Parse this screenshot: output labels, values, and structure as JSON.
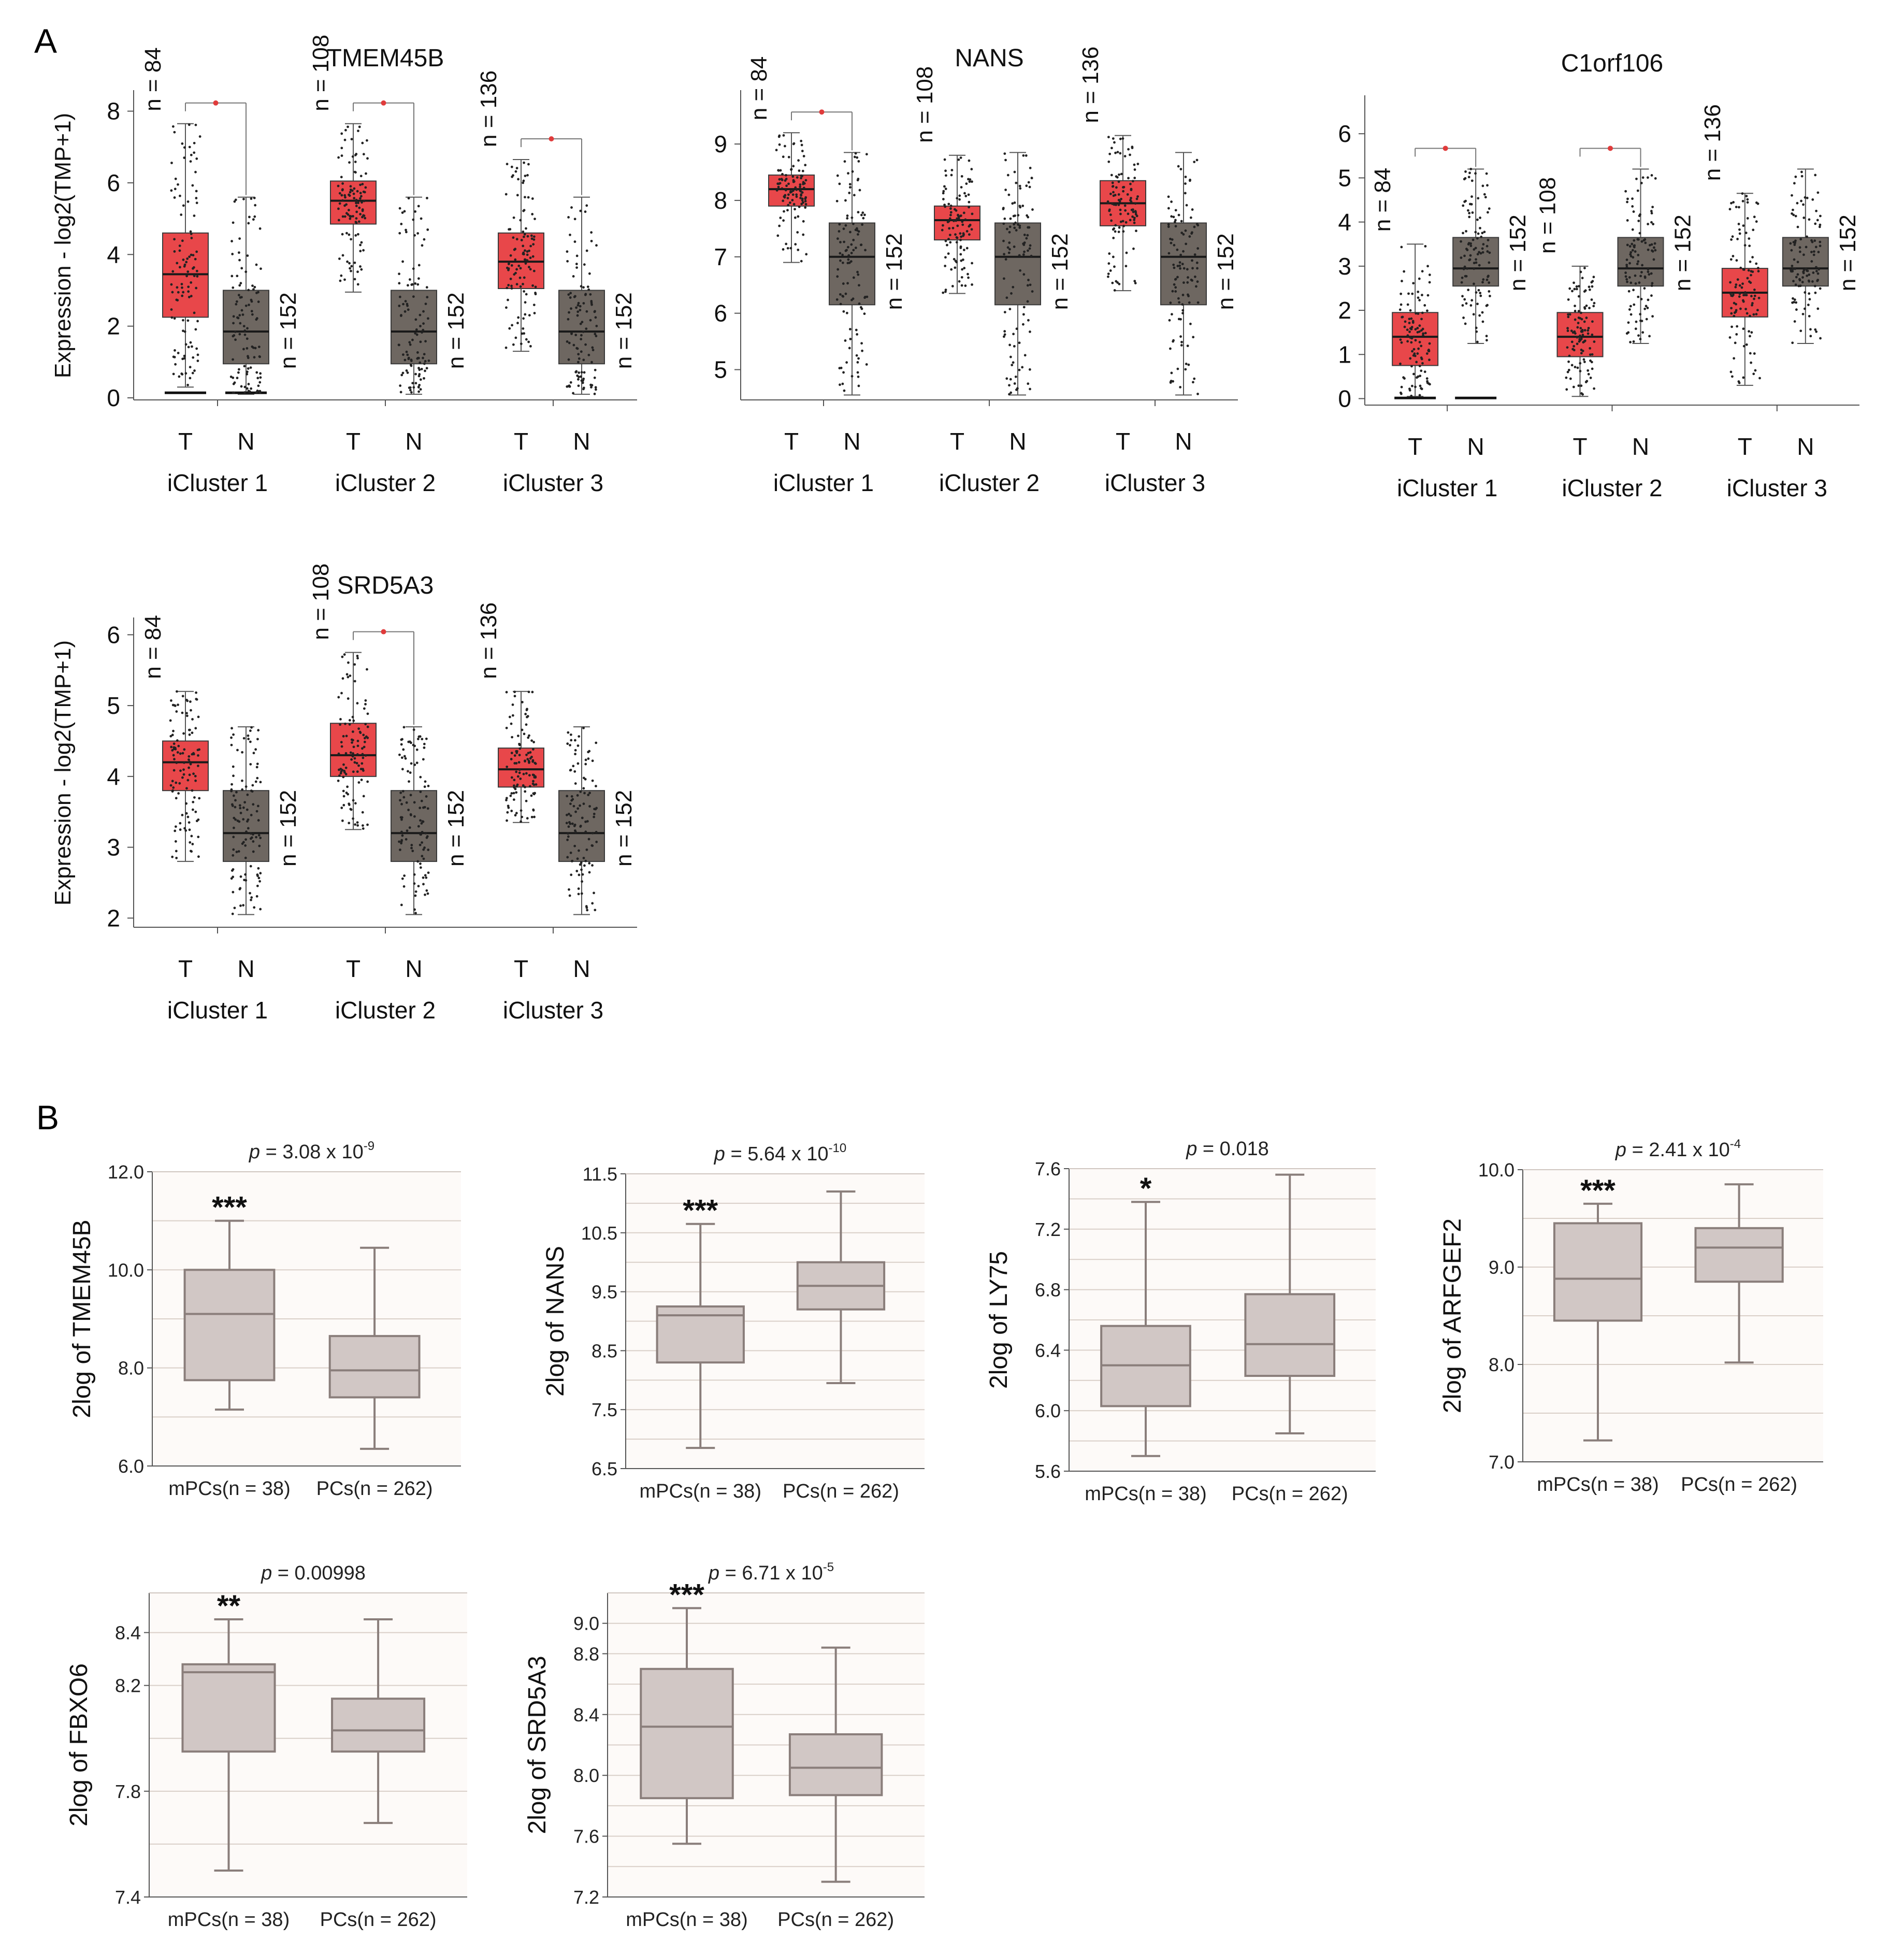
{
  "figure": {
    "panel_a_label": "A",
    "panel_b_label": "B",
    "colors": {
      "tumor": "#e8474a",
      "normal": "#6e6761",
      "box_b": "#d1c7c5",
      "box_b_stroke": "#8a7e7b",
      "sig_line": "#e03b3b",
      "grid": "#d9cfc8"
    }
  },
  "chart_data": [
    {
      "id": "a-tmem45b",
      "panel": "A",
      "type": "box",
      "title": "TMEM45B",
      "ylabel": "Expression - log2(TMP+1)",
      "ylim": [
        0,
        8.5
      ],
      "yticks": [
        0,
        2,
        4,
        6,
        8
      ],
      "groups": [
        {
          "cluster": "iCluster 1",
          "significant": true,
          "tumor": {
            "label": "T",
            "n_label": "n = 84",
            "min": 0.3,
            "q1": 2.25,
            "median": 3.45,
            "q3": 4.6,
            "max": 7.65,
            "floor": true
          },
          "normal": {
            "label": "N",
            "n_label": "n = 152",
            "min": 0.1,
            "q1": 0.95,
            "median": 1.85,
            "q3": 3.0,
            "max": 5.6,
            "floor": true
          }
        },
        {
          "cluster": "iCluster 2",
          "significant": true,
          "tumor": {
            "label": "T",
            "n_label": "n = 108",
            "min": 2.95,
            "q1": 4.85,
            "median": 5.5,
            "q3": 6.05,
            "max": 7.65
          },
          "normal": {
            "label": "N",
            "n_label": "n = 152",
            "min": 0.1,
            "q1": 0.95,
            "median": 1.85,
            "q3": 3.0,
            "max": 5.6
          }
        },
        {
          "cluster": "iCluster 3",
          "significant": true,
          "tumor": {
            "label": "T",
            "n_label": "n = 136",
            "min": 1.3,
            "q1": 3.05,
            "median": 3.8,
            "q3": 4.6,
            "max": 6.65
          },
          "normal": {
            "label": "N",
            "n_label": "n = 152",
            "min": 0.1,
            "q1": 0.95,
            "median": 1.85,
            "q3": 3.0,
            "max": 5.6
          }
        }
      ]
    },
    {
      "id": "a-nans",
      "panel": "A",
      "type": "box",
      "title": "NANS",
      "ylabel": "",
      "ylim": [
        4.5,
        9.9
      ],
      "yticks": [
        5,
        6,
        7,
        8,
        9
      ],
      "groups": [
        {
          "cluster": "iCluster 1",
          "significant": true,
          "tumor": {
            "label": "T",
            "n_label": "n = 84",
            "min": 6.9,
            "q1": 7.9,
            "median": 8.2,
            "q3": 8.45,
            "max": 9.2
          },
          "normal": {
            "label": "N",
            "n_label": "n = 152",
            "min": 4.55,
            "q1": 6.15,
            "median": 7.0,
            "q3": 7.6,
            "max": 8.85
          }
        },
        {
          "cluster": "iCluster 2",
          "significant": false,
          "tumor": {
            "label": "T",
            "n_label": "n = 108",
            "min": 6.35,
            "q1": 7.3,
            "median": 7.65,
            "q3": 7.9,
            "max": 8.8
          },
          "normal": {
            "label": "N",
            "n_label": "n = 152",
            "min": 4.55,
            "q1": 6.15,
            "median": 7.0,
            "q3": 7.6,
            "max": 8.85
          }
        },
        {
          "cluster": "iCluster 3",
          "significant": false,
          "tumor": {
            "label": "T",
            "n_label": "n = 136",
            "min": 6.4,
            "q1": 7.55,
            "median": 7.95,
            "q3": 8.35,
            "max": 9.15
          },
          "normal": {
            "label": "N",
            "n_label": "n = 152",
            "min": 4.55,
            "q1": 6.15,
            "median": 7.0,
            "q3": 7.6,
            "max": 8.85
          }
        }
      ]
    },
    {
      "id": "a-c1orf106",
      "panel": "A",
      "type": "box",
      "title": "C1orf106",
      "ylabel": "",
      "ylim": [
        -0.1,
        6.8
      ],
      "yticks": [
        0,
        1,
        2,
        3,
        4,
        5,
        6
      ],
      "groups": [
        {
          "cluster": "iCluster 1",
          "significant": true,
          "tumor": {
            "label": "T",
            "n_label": "n = 84",
            "min": 0.05,
            "q1": 0.75,
            "median": 1.4,
            "q3": 1.95,
            "max": 3.5,
            "floor": true
          },
          "normal": {
            "label": "N",
            "n_label": "n = 152",
            "min": 1.25,
            "q1": 2.55,
            "median": 2.95,
            "q3": 3.65,
            "max": 5.2,
            "floor": true
          }
        },
        {
          "cluster": "iCluster 2",
          "significant": true,
          "tumor": {
            "label": "T",
            "n_label": "n = 108",
            "min": 0.05,
            "q1": 0.95,
            "median": 1.4,
            "q3": 1.95,
            "max": 3.0
          },
          "normal": {
            "label": "N",
            "n_label": "n = 152",
            "min": 1.25,
            "q1": 2.55,
            "median": 2.95,
            "q3": 3.65,
            "max": 5.2
          }
        },
        {
          "cluster": "iCluster 3",
          "significant": false,
          "tumor": {
            "label": "T",
            "n_label": "n = 136",
            "min": 0.3,
            "q1": 1.85,
            "median": 2.4,
            "q3": 2.95,
            "max": 4.65
          },
          "normal": {
            "label": "N",
            "n_label": "n = 152",
            "min": 1.25,
            "q1": 2.55,
            "median": 2.95,
            "q3": 3.65,
            "max": 5.2
          }
        }
      ]
    },
    {
      "id": "a-srd5a3",
      "panel": "A",
      "type": "box",
      "title": "SRD5A3",
      "ylabel": "Expression - log2(TMP+1)",
      "ylim": [
        1.9,
        6.2
      ],
      "yticks": [
        2,
        3,
        4,
        5,
        6
      ],
      "groups": [
        {
          "cluster": "iCluster 1",
          "significant": false,
          "tumor": {
            "label": "T",
            "n_label": "n = 84",
            "min": 2.8,
            "q1": 3.8,
            "median": 4.2,
            "q3": 4.5,
            "max": 5.2
          },
          "normal": {
            "label": "N",
            "n_label": "n = 152",
            "min": 2.05,
            "q1": 2.8,
            "median": 3.2,
            "q3": 3.8,
            "max": 4.7
          }
        },
        {
          "cluster": "iCluster 2",
          "significant": true,
          "tumor": {
            "label": "T",
            "n_label": "n = 108",
            "min": 3.25,
            "q1": 4.0,
            "median": 4.3,
            "q3": 4.75,
            "max": 5.75
          },
          "normal": {
            "label": "N",
            "n_label": "n = 152",
            "min": 2.05,
            "q1": 2.8,
            "median": 3.2,
            "q3": 3.8,
            "max": 4.7
          }
        },
        {
          "cluster": "iCluster 3",
          "significant": false,
          "tumor": {
            "label": "T",
            "n_label": "n = 136",
            "min": 3.35,
            "q1": 3.85,
            "median": 4.1,
            "q3": 4.4,
            "max": 5.2
          },
          "normal": {
            "label": "N",
            "n_label": "n = 152",
            "min": 2.05,
            "q1": 2.8,
            "median": 3.2,
            "q3": 3.8,
            "max": 4.7
          }
        }
      ]
    },
    {
      "id": "b-tmem45b",
      "panel": "B",
      "type": "box",
      "ylabel": "2log of TMEM45B",
      "p_prefix": "p",
      "p_value": " = 3.08 x 10",
      "p_exp": "-9",
      "ylim": [
        6.0,
        12.0
      ],
      "yticks": [
        6.0,
        8.0,
        10.0,
        12.0
      ],
      "tick_labels": [
        "6.0",
        "8.0",
        "10.0",
        "12.0"
      ],
      "gridlines": [
        7.0,
        8.0,
        9.0,
        10.0,
        11.0
      ],
      "categories": [
        "mPCs(n = 38)",
        "PCs(n = 262)"
      ],
      "star": "***",
      "boxes": [
        {
          "min": 7.15,
          "q1": 7.75,
          "median": 9.1,
          "q3": 10.0,
          "max": 11.0
        },
        {
          "min": 6.35,
          "q1": 7.4,
          "median": 7.95,
          "q3": 8.65,
          "max": 10.45
        }
      ]
    },
    {
      "id": "b-nans",
      "panel": "B",
      "type": "box",
      "ylabel": "2log of NANS",
      "p_prefix": "p",
      "p_value": " = 5.64 x 10",
      "p_exp": "-10",
      "ylim": [
        6.5,
        11.5
      ],
      "yticks": [
        6.5,
        7.5,
        8.5,
        9.5,
        10.5,
        11.5
      ],
      "tick_labels": [
        "6.5",
        "7.5",
        "8.5",
        "9.5",
        "10.5",
        "11.5"
      ],
      "gridlines": [
        7.0,
        7.5,
        8.0,
        8.5,
        9.0,
        9.5,
        10.0,
        10.5,
        11.0
      ],
      "categories": [
        "mPCs(n = 38)",
        "PCs(n = 262)"
      ],
      "star": "***",
      "boxes": [
        {
          "min": 6.85,
          "q1": 8.3,
          "median": 9.1,
          "q3": 9.25,
          "max": 10.65
        },
        {
          "min": 7.95,
          "q1": 9.2,
          "median": 9.6,
          "q3": 10.0,
          "max": 11.2
        }
      ]
    },
    {
      "id": "b-ly75",
      "panel": "B",
      "type": "box",
      "ylabel": "2log of LY75",
      "p_prefix": "p",
      "p_value": " = 0.018",
      "p_exp": "",
      "ylim": [
        5.6,
        7.6
      ],
      "yticks": [
        5.6,
        6.0,
        6.4,
        6.8,
        7.2,
        7.6
      ],
      "tick_labels": [
        "5.6",
        "6.0",
        "6.4",
        "6.8",
        "7.2",
        "7.6"
      ],
      "gridlines": [
        5.8,
        6.0,
        6.2,
        6.4,
        6.6,
        6.8,
        7.0,
        7.2,
        7.4
      ],
      "categories": [
        "mPCs(n = 38)",
        "PCs(n = 262)"
      ],
      "star": "*",
      "boxes": [
        {
          "min": 5.7,
          "q1": 6.03,
          "median": 6.3,
          "q3": 6.56,
          "max": 7.38
        },
        {
          "min": 5.85,
          "q1": 6.23,
          "median": 6.44,
          "q3": 6.77,
          "max": 7.56
        }
      ]
    },
    {
      "id": "b-arfgef2",
      "panel": "B",
      "type": "box",
      "ylabel": "2log of ARFGEF2",
      "p_prefix": "p",
      "p_value": " = 2.41 x 10",
      "p_exp": "-4",
      "ylim": [
        7.0,
        10.0
      ],
      "yticks": [
        7.0,
        8.0,
        9.0,
        10.0
      ],
      "tick_labels": [
        "7.0",
        "8.0",
        "9.0",
        "10.0"
      ],
      "gridlines": [
        7.5,
        8.0,
        8.5,
        9.0,
        9.5
      ],
      "categories": [
        "mPCs(n = 38)",
        "PCs(n = 262)"
      ],
      "star": "***",
      "boxes": [
        {
          "min": 7.22,
          "q1": 8.45,
          "median": 8.88,
          "q3": 9.45,
          "max": 9.65
        },
        {
          "min": 8.02,
          "q1": 8.85,
          "median": 9.2,
          "q3": 9.4,
          "max": 9.85
        }
      ]
    },
    {
      "id": "b-fbxo6",
      "panel": "B",
      "type": "box",
      "ylabel": "2log of FBXO6",
      "p_prefix": "p",
      "p_value": " = 0.00998",
      "p_exp": "",
      "ylim": [
        7.4,
        8.55
      ],
      "yticks": [
        7.4,
        7.8,
        8.2,
        8.4
      ],
      "tick_labels": [
        "7.4",
        "7.8",
        "8.2",
        "8.4"
      ],
      "gridlines": [
        7.6,
        7.8,
        8.0,
        8.2,
        8.4
      ],
      "categories": [
        "mPCs(n = 38)",
        "PCs(n = 262)"
      ],
      "star": "**",
      "boxes": [
        {
          "min": 7.5,
          "q1": 7.95,
          "median": 8.25,
          "q3": 8.28,
          "max": 8.45
        },
        {
          "min": 7.68,
          "q1": 7.95,
          "median": 8.03,
          "q3": 8.15,
          "max": 8.45
        }
      ]
    },
    {
      "id": "b-srd5a3",
      "panel": "B",
      "type": "box",
      "ylabel": "2log of SRD5A3",
      "p_prefix": "p",
      "p_value": " = 6.71 x 10",
      "p_exp": "-5",
      "ylim": [
        7.2,
        9.2
      ],
      "yticks": [
        7.2,
        7.6,
        8.0,
        8.4,
        8.8,
        9.0
      ],
      "tick_labels": [
        "7.2",
        "7.6",
        "8.0",
        "8.4",
        "8.8",
        "9.0"
      ],
      "gridlines": [
        7.4,
        7.6,
        7.8,
        8.0,
        8.2,
        8.4,
        8.6,
        8.8,
        9.0
      ],
      "categories": [
        "mPCs(n = 38)",
        "PCs(n = 262)"
      ],
      "star": "***",
      "boxes": [
        {
          "min": 7.55,
          "q1": 7.85,
          "median": 8.32,
          "q3": 8.7,
          "max": 9.1
        },
        {
          "min": 7.3,
          "q1": 7.87,
          "median": 8.05,
          "q3": 8.27,
          "max": 8.84
        }
      ]
    }
  ]
}
